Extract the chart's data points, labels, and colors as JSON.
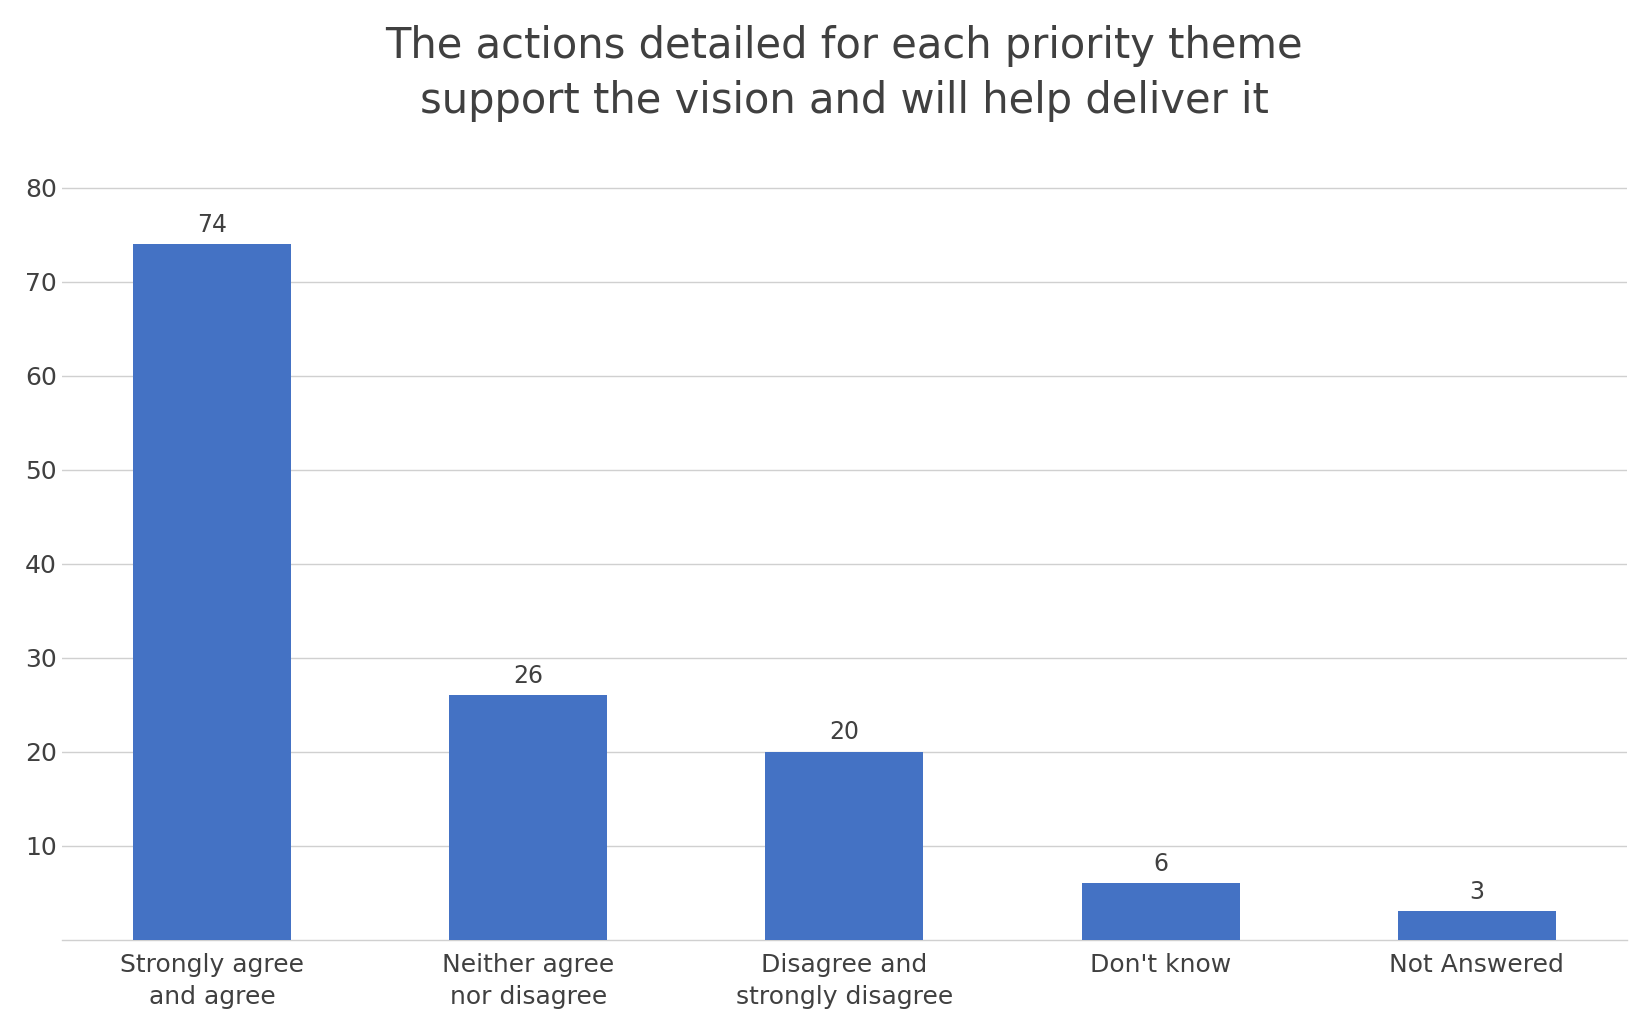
{
  "title": "The actions detailed for each priority theme\nsupport the vision and will help deliver it",
  "categories": [
    "Strongly agree\nand agree",
    "Neither agree\nnor disagree",
    "Disagree and\nstrongly disagree",
    "Don't know",
    "Not Answered"
  ],
  "values": [
    74,
    26,
    20,
    6,
    3
  ],
  "bar_color": "#4472C4",
  "ylim": [
    0,
    85
  ],
  "yticks": [
    10,
    20,
    30,
    40,
    50,
    60,
    70,
    80
  ],
  "title_fontsize": 30,
  "tick_fontsize": 18,
  "value_label_fontsize": 17,
  "background_color": "#ffffff",
  "grid_color": "#d0d0d0",
  "bar_width": 0.5,
  "text_color": "#404040"
}
